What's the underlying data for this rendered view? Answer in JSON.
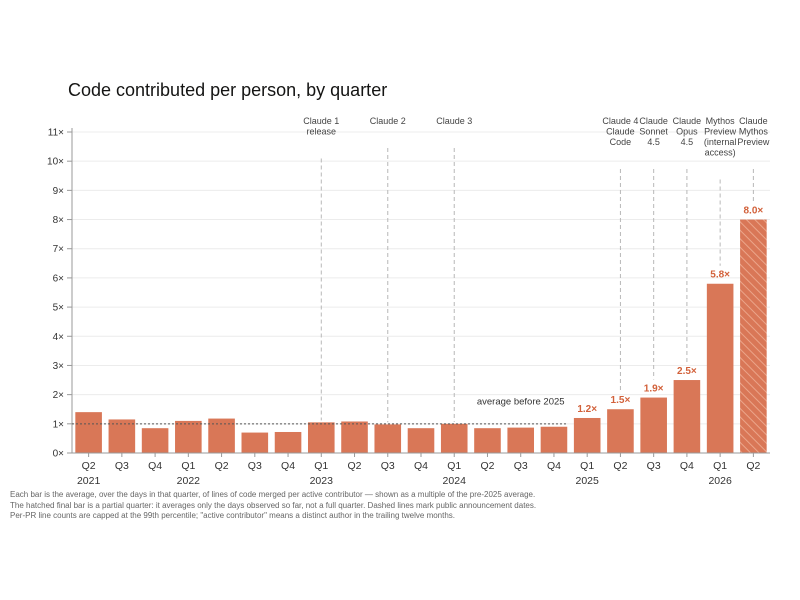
{
  "chart_data": {
    "type": "bar",
    "title": "Code contributed per person, by quarter",
    "bar_color": "#d97757",
    "label_color": "#d2613a",
    "x_labels": [
      "Q2",
      "Q3",
      "Q4",
      "Q1",
      "Q2",
      "Q3",
      "Q4",
      "Q1",
      "Q2",
      "Q3",
      "Q4",
      "Q1",
      "Q2",
      "Q3",
      "Q4",
      "Q1",
      "Q2",
      "Q3",
      "Q4",
      "Q1",
      "Q2"
    ],
    "year_labels": [
      {
        "index": 0,
        "text": "2021"
      },
      {
        "index": 3,
        "text": "2022"
      },
      {
        "index": 7,
        "text": "2023"
      },
      {
        "index": 11,
        "text": "2024"
      },
      {
        "index": 15,
        "text": "2025"
      },
      {
        "index": 19,
        "text": "2026"
      }
    ],
    "values": [
      1.4,
      1.15,
      0.85,
      1.1,
      1.18,
      0.7,
      0.72,
      1.05,
      1.08,
      0.98,
      0.85,
      1.0,
      0.85,
      0.87,
      0.9,
      1.2,
      1.5,
      1.9,
      2.5,
      5.8,
      8.0
    ],
    "value_labels": [
      {
        "index": 15,
        "text": "1.2×"
      },
      {
        "index": 16,
        "text": "1.5×"
      },
      {
        "index": 17,
        "text": "1.9×"
      },
      {
        "index": 18,
        "text": "2.5×"
      },
      {
        "index": 19,
        "text": "5.8×"
      },
      {
        "index": 20,
        "text": "8.0×"
      }
    ],
    "hatched_index": 20,
    "ylim": [
      0,
      11
    ],
    "yticks": [
      "0×",
      "1×",
      "2×",
      "3×",
      "4×",
      "5×",
      "6×",
      "7×",
      "8×",
      "9×",
      "10×",
      "11×"
    ],
    "baseline_label": "average before 2025",
    "baseline_value": 1.0,
    "annotations": [
      {
        "index": 7,
        "lines": [
          "Claude 1",
          "release"
        ]
      },
      {
        "index": 9,
        "lines": [
          "Claude 2"
        ]
      },
      {
        "index": 11,
        "lines": [
          "Claude 3"
        ]
      },
      {
        "index": 16,
        "lines": [
          "Claude 4",
          "Claude",
          "Code"
        ]
      },
      {
        "index": 17,
        "lines": [
          "Claude",
          "Sonnet",
          "4.5"
        ]
      },
      {
        "index": 18,
        "lines": [
          "Claude",
          "Opus",
          "4.5"
        ]
      },
      {
        "index": 19,
        "lines": [
          "Mythos",
          "Preview",
          "(internal",
          "access)"
        ]
      },
      {
        "index": 20,
        "lines": [
          "Claude",
          "Mythos",
          "Preview"
        ]
      }
    ]
  },
  "footnote": [
    "Each bar is the average, over the days in that quarter, of lines of code merged per active contributor — shown as a multiple of the pre-2025 average.",
    "The hatched final bar is a partial quarter: it averages only the days observed so far, not a full quarter. Dashed lines mark public announcement dates.",
    "Per-PR line counts are capped at the 99th percentile; \"active contributor\" means a distinct author in the trailing twelve months."
  ]
}
